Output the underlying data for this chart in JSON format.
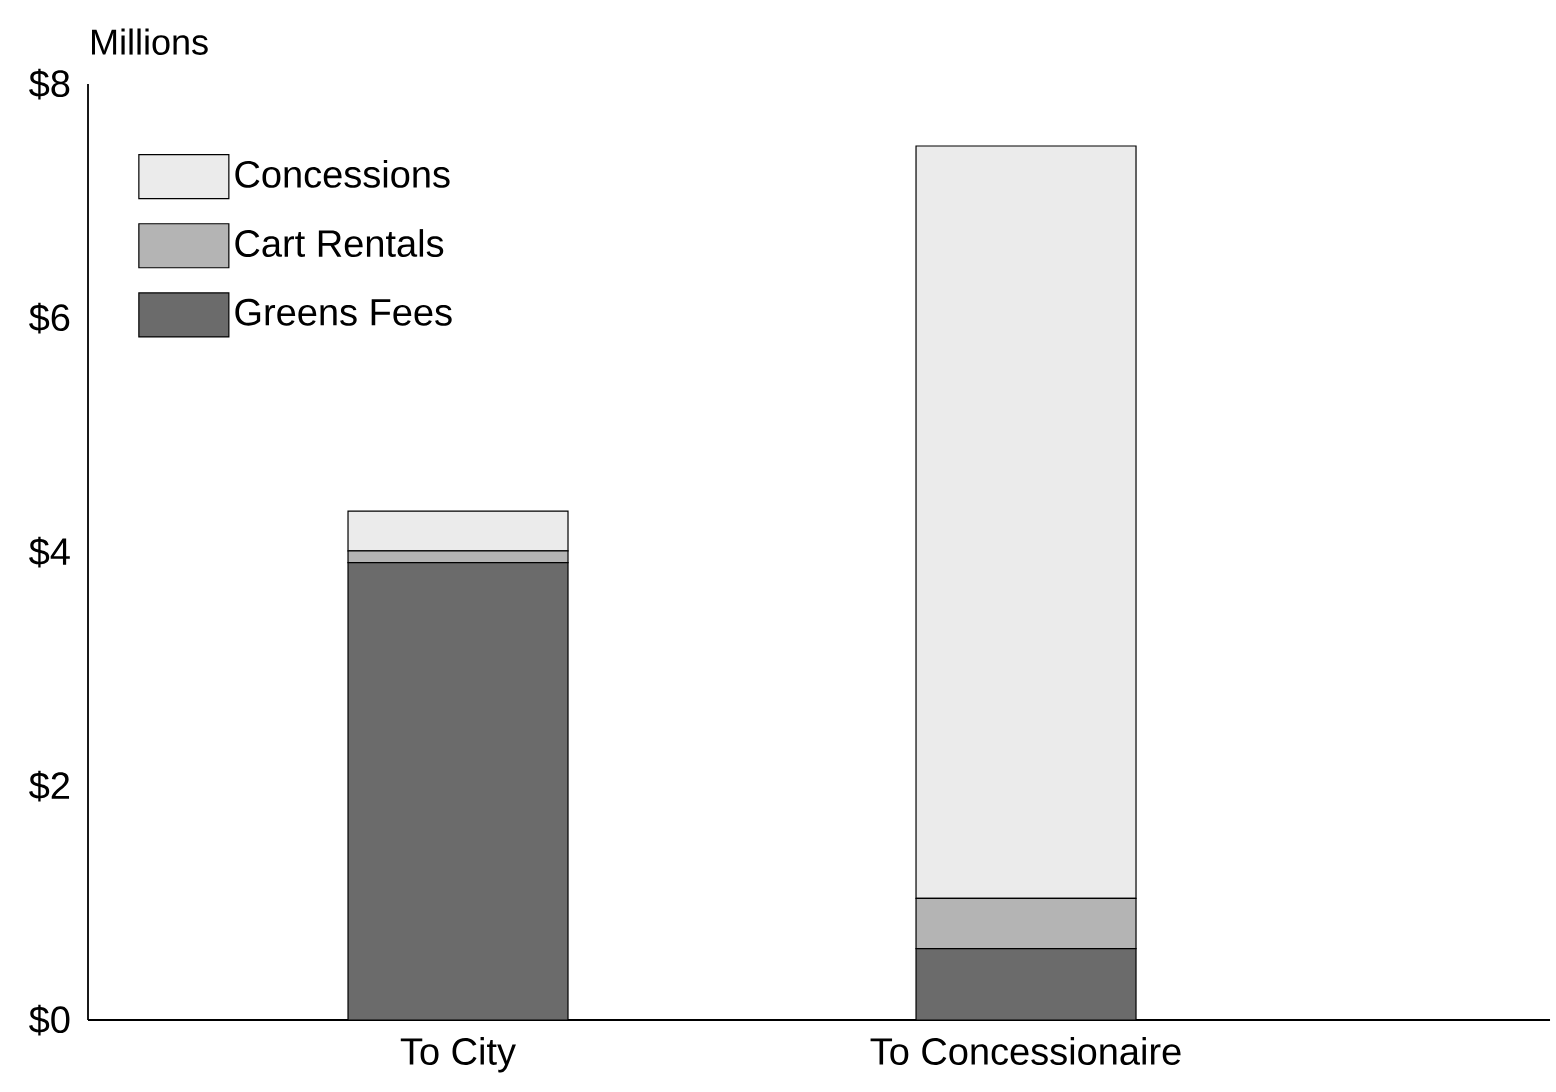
{
  "chart_data": {
    "type": "bar",
    "stacked": true,
    "ylabel": "Millions",
    "categories": [
      "To City",
      "To Concessionaire"
    ],
    "series": [
      {
        "name": "Greens Fees",
        "color": "#6b6b6b",
        "values": [
          3.91,
          0.61
        ]
      },
      {
        "name": "Cart Rentals",
        "color": "#b4b4b4",
        "values": [
          0.1,
          0.43
        ]
      },
      {
        "name": "Concessions",
        "color": "#ebebeb",
        "values": [
          0.34,
          6.43
        ]
      }
    ],
    "ylim": [
      0,
      8
    ],
    "yticks": [
      {
        "value": 0,
        "label": "$0"
      },
      {
        "value": 2,
        "label": "$2"
      },
      {
        "value": 4,
        "label": "$4"
      },
      {
        "value": 6,
        "label": "$6"
      },
      {
        "value": 8,
        "label": "$8"
      }
    ],
    "legend": "top left"
  }
}
